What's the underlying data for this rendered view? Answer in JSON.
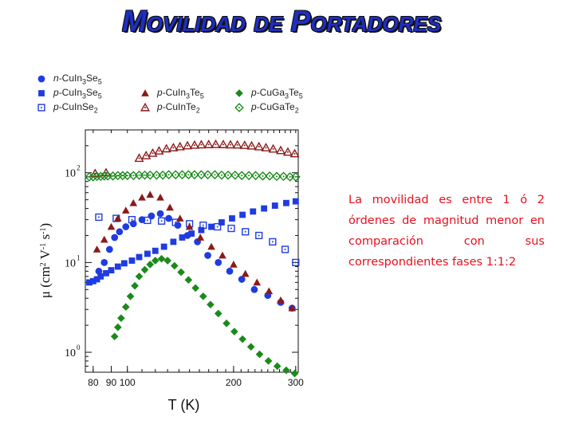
{
  "slide": {
    "title": "Movilidad de Portadores",
    "description": "La movilidad es entre 1 ó 2 órdenes de magnitud menor en comparación con sus correspondientes fases 1:1:2",
    "colors": {
      "title": "#1f2ec4",
      "description": "#e8101e",
      "blue": "#1f3ce0",
      "darkred": "#8b1a1a",
      "green": "#1b8a1b"
    }
  },
  "legend": [
    {
      "prefix": "n",
      "formula": "-CuIn",
      "sub1": "3",
      "mid": "Se",
      "sub2": "5",
      "marker": "circle-filled",
      "color": "#1f3ce0"
    },
    {
      "prefix": "p",
      "formula": "-CuIn",
      "sub1": "3",
      "mid": "Se",
      "sub2": "5",
      "marker": "square-filled",
      "color": "#1f3ce0"
    },
    {
      "prefix": "p",
      "formula": "-CuInSe",
      "sub1": "",
      "mid": "",
      "sub2": "2",
      "marker": "square-open-dot",
      "color": "#1f3ce0"
    },
    {
      "prefix": "p",
      "formula": "-CuIn",
      "sub1": "3",
      "mid": "Te",
      "sub2": "5",
      "marker": "triangle-filled",
      "color": "#8b1a1a"
    },
    {
      "prefix": "p",
      "formula": "-CuInTe",
      "sub1": "",
      "mid": "",
      "sub2": "2",
      "marker": "triangle-open-dot",
      "color": "#8b1a1a"
    },
    {
      "prefix": "p",
      "formula": "-CuGa",
      "sub1": "3",
      "mid": "Te",
      "sub2": "5",
      "marker": "diamond-filled",
      "color": "#1b8a1b"
    },
    {
      "prefix": "p",
      "formula": "-CuGaTe",
      "sub1": "",
      "mid": "",
      "sub2": "2",
      "marker": "diamond-open-dot",
      "color": "#1b8a1b"
    }
  ],
  "chart_data": {
    "type": "scatter",
    "xscale": "log",
    "yscale": "log",
    "xlim": [
      76,
      305
    ],
    "ylim": [
      0.6,
      300
    ],
    "xticks": [
      80,
      90,
      100,
      200,
      300
    ],
    "xtick_labels": [
      "80",
      "90",
      "100",
      "200",
      "300"
    ],
    "yticks": [
      1,
      10,
      100
    ],
    "ytick_labels": [
      "10",
      "10",
      "10"
    ],
    "ytick_exponents": [
      "0",
      "1",
      "2"
    ],
    "xlabel": "T  (K)",
    "ylabel_parts": [
      "μ (cm",
      "2",
      " V",
      "-1",
      " s",
      "-1",
      ")"
    ],
    "series": [
      {
        "name": "n-CuIn3Se5",
        "marker": "circle-filled",
        "color": "#1f3ce0",
        "x": [
          83,
          86,
          89,
          92,
          95,
          99,
          104,
          110,
          117,
          124,
          131,
          139,
          148,
          158,
          169,
          181,
          195,
          211,
          229,
          250,
          272,
          293
        ],
        "y": [
          8,
          10,
          14,
          19,
          22,
          25,
          27,
          30,
          33,
          35,
          31,
          26,
          20,
          17,
          12,
          10,
          8,
          6.5,
          5,
          4.3,
          3.6,
          3.1
        ]
      },
      {
        "name": "p-CuIn3Se5",
        "marker": "square-filled",
        "color": "#1f3ce0",
        "x": [
          78,
          80,
          82,
          84,
          87,
          90,
          94,
          98,
          103,
          108,
          114,
          120,
          127,
          135,
          143,
          152,
          162,
          173,
          185,
          198,
          212,
          227,
          244,
          262,
          282,
          300
        ],
        "y": [
          6,
          6.2,
          6.5,
          7,
          7.6,
          8.2,
          9,
          9.8,
          10.5,
          11.5,
          12.5,
          13.5,
          15,
          17,
          19,
          21,
          23,
          25,
          28,
          31,
          34,
          37,
          40,
          43,
          46,
          48
        ]
      },
      {
        "name": "p-CuInSe2",
        "marker": "square-open-dot",
        "color": "#1f3ce0",
        "x": [
          83,
          93,
          103,
          114,
          125,
          137,
          150,
          164,
          180,
          197,
          216,
          236,
          258,
          280,
          300
        ],
        "y": [
          32,
          31,
          30,
          29.5,
          29,
          28,
          27,
          26,
          25,
          24,
          22,
          20,
          17,
          14,
          10
        ]
      },
      {
        "name": "p-CuIn3Te5",
        "marker": "triangle-filled",
        "color": "#8b1a1a",
        "x": [
          82,
          86,
          90,
          94,
          99,
          104,
          110,
          116,
          124,
          132,
          141,
          150,
          161,
          173,
          186,
          200,
          216,
          233,
          252,
          272,
          293
        ],
        "y": [
          14,
          18,
          25,
          31,
          38,
          46,
          53,
          57,
          53,
          41,
          31,
          25,
          19,
          15,
          12,
          9.5,
          7.5,
          6,
          4.8,
          3.8,
          3.1
        ]
      },
      {
        "name": "p-CuInTe2",
        "marker": "triangle-open-dot",
        "color": "#8b1a1a",
        "x": [
          81,
          87,
          108,
          113,
          118,
          123,
          129,
          135,
          141,
          148,
          155,
          162,
          170,
          178,
          187,
          196,
          205,
          215,
          225,
          236,
          247,
          259,
          272,
          285,
          298
        ],
        "y": [
          98,
          100,
          145,
          155,
          165,
          175,
          185,
          190,
          195,
          200,
          203,
          205,
          206,
          207,
          206,
          205,
          204,
          202,
          199,
          195,
          190,
          184,
          177,
          170,
          163
        ]
      },
      {
        "name": "p-CuGa3Te5",
        "marker": "diamond-filled",
        "color": "#1b8a1b",
        "x": [
          92,
          94,
          96,
          99,
          102,
          105,
          108,
          112,
          116,
          120,
          125,
          130,
          136,
          142,
          149,
          156,
          164,
          172,
          181,
          191,
          201,
          212,
          224,
          237,
          251,
          266,
          282,
          298
        ],
        "y": [
          1.5,
          1.9,
          2.4,
          3.2,
          4.2,
          5.5,
          7,
          8.3,
          9.5,
          10.5,
          11,
          10.5,
          9.2,
          7.8,
          6.4,
          5.2,
          4.2,
          3.4,
          2.7,
          2.1,
          1.7,
          1.4,
          1.15,
          0.95,
          0.8,
          0.7,
          0.63,
          0.58
        ]
      },
      {
        "name": "p-CuGaTe2",
        "marker": "diamond-open-dot",
        "color": "#1b8a1b",
        "x": [
          78,
          80,
          82,
          84,
          86,
          88,
          91,
          94,
          97,
          100,
          104,
          108,
          112,
          116,
          121,
          126,
          131,
          137,
          143,
          149,
          155,
          162,
          169,
          177,
          185,
          193,
          202,
          211,
          221,
          231,
          242,
          253,
          265,
          277,
          289,
          300
        ],
        "y": [
          90,
          90,
          91,
          91,
          92,
          92,
          92,
          93,
          93,
          93,
          93,
          94,
          94,
          94,
          94,
          94,
          95,
          95,
          95,
          95,
          95,
          95,
          95,
          95,
          94,
          94,
          94,
          93,
          93,
          93,
          92,
          92,
          91,
          91,
          90,
          90
        ]
      }
    ]
  }
}
